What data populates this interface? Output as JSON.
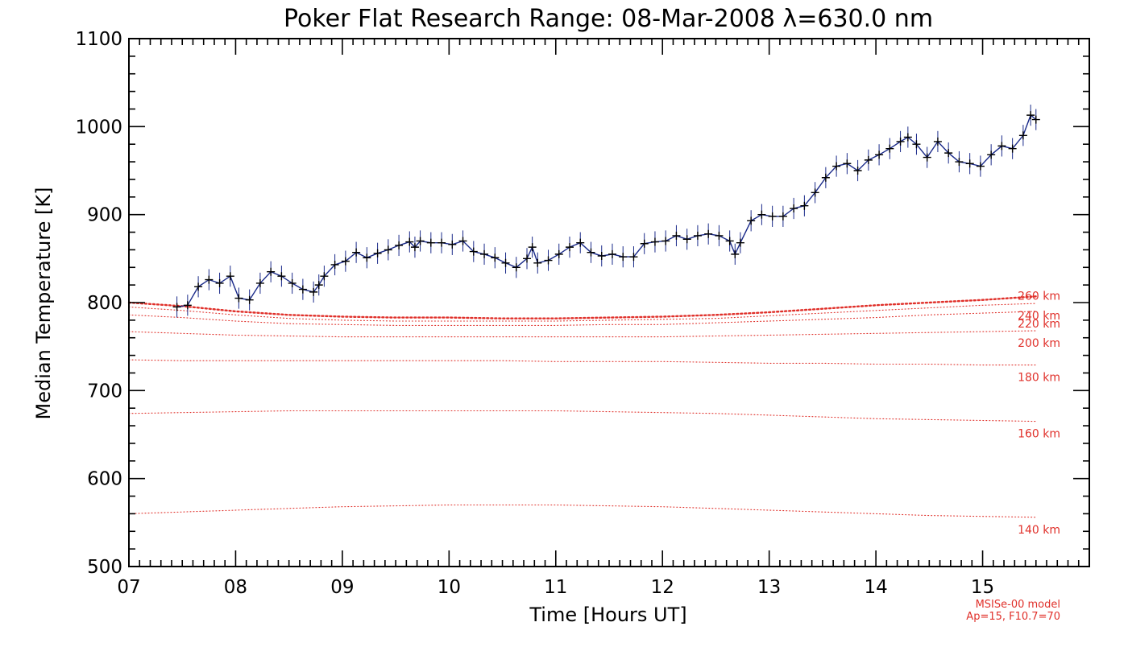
{
  "chart_data": {
    "type": "line",
    "title": "Poker Flat Research Range: 08-Mar-2008 λ=630.0 nm",
    "xlabel": "Time [Hours UT]",
    "ylabel": "Median Temperature [K]",
    "xlim": [
      7,
      16
    ],
    "ylim": [
      500,
      1100
    ],
    "xticks": [
      7,
      8,
      9,
      10,
      11,
      12,
      13,
      14,
      15
    ],
    "xtick_labels": [
      "07",
      "08",
      "09",
      "10",
      "11",
      "12",
      "13",
      "14",
      "15"
    ],
    "yticks": [
      500,
      600,
      700,
      800,
      900,
      1000,
      1100
    ],
    "ytick_labels": [
      "500",
      "600",
      "700",
      "800",
      "900",
      "1000",
      "1100"
    ],
    "grid": false,
    "colors": {
      "measured": "#1a2a8a",
      "model": "#e0302a",
      "marker": "#000000",
      "axis": "#000000"
    },
    "series": [
      {
        "kind": "measured",
        "error_bar": 12,
        "x": [
          7.45,
          7.55,
          7.65,
          7.75,
          7.85,
          7.95,
          8.03,
          8.13,
          8.23,
          8.33,
          8.43,
          8.53,
          8.63,
          8.73,
          8.78,
          8.83,
          8.93,
          9.03,
          9.13,
          9.23,
          9.33,
          9.43,
          9.53,
          9.63,
          9.68,
          9.73,
          9.83,
          9.93,
          10.03,
          10.13,
          10.23,
          10.33,
          10.43,
          10.53,
          10.63,
          10.73,
          10.78,
          10.83,
          10.93,
          11.03,
          11.13,
          11.23,
          11.33,
          11.43,
          11.53,
          11.63,
          11.73,
          11.83,
          11.93,
          12.03,
          12.13,
          12.23,
          12.33,
          12.43,
          12.53,
          12.63,
          12.68,
          12.73,
          12.83,
          12.93,
          13.03,
          13.13,
          13.23,
          13.33,
          13.43,
          13.53,
          13.63,
          13.73,
          13.83,
          13.93,
          14.03,
          14.13,
          14.23,
          14.3,
          14.38,
          14.48,
          14.58,
          14.68,
          14.78,
          14.88,
          14.98,
          15.08,
          15.18,
          15.28,
          15.38,
          15.45,
          15.5
        ],
        "y": [
          795,
          797,
          818,
          826,
          822,
          830,
          805,
          803,
          822,
          835,
          830,
          822,
          815,
          812,
          820,
          830,
          843,
          847,
          857,
          851,
          856,
          860,
          865,
          869,
          863,
          870,
          868,
          868,
          866,
          870,
          858,
          855,
          851,
          845,
          840,
          850,
          863,
          845,
          848,
          855,
          863,
          868,
          857,
          853,
          855,
          852,
          852,
          867,
          869,
          870,
          876,
          872,
          876,
          878,
          876,
          870,
          855,
          868,
          893,
          900,
          898,
          898,
          907,
          910,
          925,
          942,
          955,
          958,
          950,
          962,
          968,
          975,
          983,
          988,
          980,
          965,
          983,
          970,
          960,
          958,
          955,
          968,
          978,
          975,
          990,
          1013,
          1008
        ]
      },
      {
        "kind": "model",
        "name": "260 km",
        "x": [
          7.0,
          7.5,
          8.0,
          8.5,
          9.0,
          9.5,
          10.0,
          10.5,
          11.0,
          11.5,
          12.0,
          12.5,
          13.0,
          13.5,
          14.0,
          14.5,
          15.0,
          15.5
        ],
        "y": [
          800,
          796,
          790,
          786,
          784,
          783,
          783,
          782,
          782,
          783,
          784,
          786,
          789,
          793,
          797,
          800,
          803,
          807
        ]
      },
      {
        "kind": "model",
        "name": "240 km",
        "x": [
          7.0,
          7.5,
          8.0,
          8.5,
          9.0,
          9.5,
          10.0,
          10.5,
          11.0,
          11.5,
          12.0,
          12.5,
          13.0,
          13.5,
          14.0,
          14.5,
          15.0,
          15.5
        ],
        "y": [
          795,
          791,
          786,
          782,
          780,
          779,
          779,
          779,
          779,
          780,
          781,
          782,
          785,
          788,
          791,
          794,
          797,
          799
        ]
      },
      {
        "kind": "model",
        "name": "220 km",
        "x": [
          7.0,
          7.5,
          8.0,
          8.5,
          9.0,
          9.5,
          10.0,
          10.5,
          11.0,
          11.5,
          12.0,
          12.5,
          13.0,
          13.5,
          14.0,
          14.5,
          15.0,
          15.5
        ],
        "y": [
          786,
          783,
          779,
          776,
          775,
          774,
          774,
          774,
          774,
          775,
          775,
          777,
          779,
          781,
          783,
          786,
          788,
          790
        ]
      },
      {
        "kind": "model",
        "name": "200 km",
        "x": [
          7.0,
          7.5,
          8.0,
          8.5,
          9.0,
          9.5,
          10.0,
          10.5,
          11.0,
          11.5,
          12.0,
          12.5,
          13.0,
          13.5,
          14.0,
          14.5,
          15.0,
          15.5
        ],
        "y": [
          767,
          765,
          763,
          762,
          761,
          761,
          761,
          761,
          761,
          761,
          761,
          762,
          763,
          764,
          765,
          766,
          767,
          768
        ]
      },
      {
        "kind": "model",
        "name": "180 km",
        "x": [
          7.0,
          7.5,
          8.0,
          8.5,
          9.0,
          9.5,
          10.0,
          10.5,
          11.0,
          11.5,
          12.0,
          12.5,
          13.0,
          13.5,
          14.0,
          14.5,
          15.0,
          15.5
        ],
        "y": [
          735,
          734,
          734,
          734,
          734,
          734,
          734,
          734,
          733,
          733,
          733,
          732,
          731,
          731,
          730,
          730,
          729,
          729
        ]
      },
      {
        "kind": "model",
        "name": "160 km",
        "x": [
          7.0,
          7.5,
          8.0,
          8.5,
          9.0,
          9.5,
          10.0,
          10.5,
          11.0,
          11.5,
          12.0,
          12.5,
          13.0,
          13.5,
          14.0,
          14.5,
          15.0,
          15.5
        ],
        "y": [
          674,
          675,
          676,
          677,
          677,
          677,
          677,
          677,
          677,
          676,
          675,
          674,
          672,
          670,
          668,
          667,
          666,
          665
        ]
      },
      {
        "kind": "model",
        "name": "140 km",
        "x": [
          7.0,
          7.5,
          8.0,
          8.5,
          9.0,
          9.5,
          10.0,
          10.5,
          11.0,
          11.5,
          12.0,
          12.5,
          13.0,
          13.5,
          14.0,
          14.5,
          15.0,
          15.5
        ],
        "y": [
          560,
          562,
          564,
          566,
          568,
          569,
          570,
          570,
          570,
          569,
          568,
          566,
          564,
          562,
          560,
          558,
          557,
          556
        ]
      }
    ],
    "annotations": [
      "MSISe-00 model",
      "Ap=15, F10.7=70"
    ]
  }
}
